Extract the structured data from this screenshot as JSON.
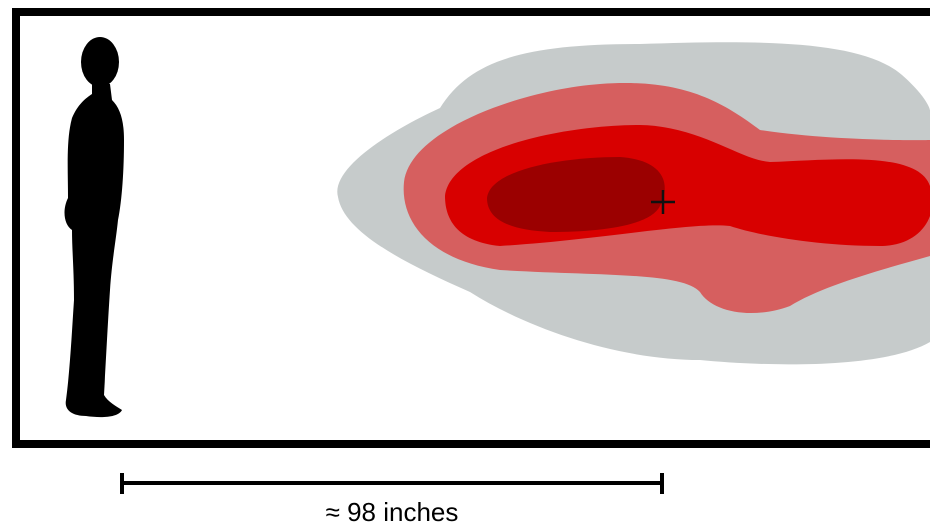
{
  "scale": {
    "label": "≈ 98 inches"
  }
}
